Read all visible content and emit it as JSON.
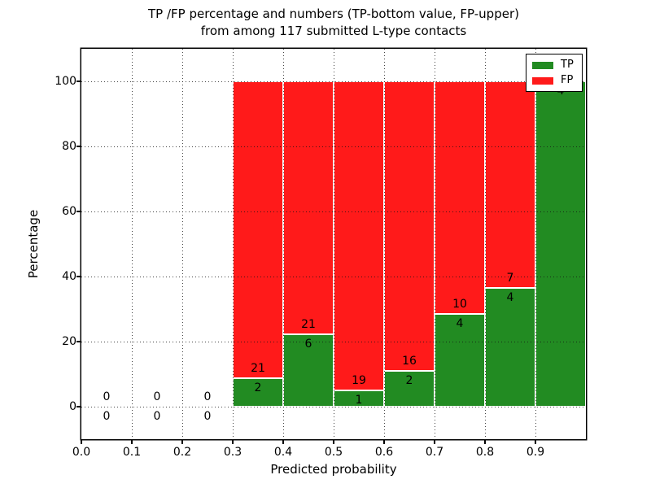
{
  "chart_data": {
    "type": "bar",
    "stacked": true,
    "normalized": "each bin scaled to 100%",
    "title_line1": "TP /FP percentage and numbers (TP-bottom value, FP-upper)",
    "title_line2": "from among 117 submitted L-type contacts",
    "xlabel": "Predicted probability",
    "ylabel": "Percentage",
    "xlim": [
      0.0,
      1.0
    ],
    "ylim": [
      -10,
      110
    ],
    "x_ticks": [
      "0.0",
      "0.1",
      "0.2",
      "0.3",
      "0.4",
      "0.5",
      "0.6",
      "0.7",
      "0.8",
      "0.9"
    ],
    "y_ticks": [
      "0",
      "20",
      "40",
      "60",
      "80",
      "100"
    ],
    "grid": "dotted both axes",
    "total_contacts": 117,
    "legend": {
      "position": "upper right",
      "entries": [
        {
          "label": "TP",
          "color": "#228b22"
        },
        {
          "label": "FP",
          "color": "#ff1a1a"
        }
      ]
    },
    "bins": [
      {
        "x_start": 0.0,
        "x_end": 0.1,
        "tp": 0,
        "fp": 0,
        "tp_pct": 0
      },
      {
        "x_start": 0.1,
        "x_end": 0.2,
        "tp": 0,
        "fp": 0,
        "tp_pct": 0
      },
      {
        "x_start": 0.2,
        "x_end": 0.3,
        "tp": 0,
        "fp": 0,
        "tp_pct": 0
      },
      {
        "x_start": 0.3,
        "x_end": 0.4,
        "tp": 2,
        "fp": 21,
        "tp_pct": 8.7
      },
      {
        "x_start": 0.4,
        "x_end": 0.5,
        "tp": 6,
        "fp": 21,
        "tp_pct": 22.2
      },
      {
        "x_start": 0.5,
        "x_end": 0.6,
        "tp": 1,
        "fp": 19,
        "tp_pct": 5.0
      },
      {
        "x_start": 0.6,
        "x_end": 0.7,
        "tp": 2,
        "fp": 16,
        "tp_pct": 11.1
      },
      {
        "x_start": 0.7,
        "x_end": 0.8,
        "tp": 4,
        "fp": 10,
        "tp_pct": 28.6
      },
      {
        "x_start": 0.8,
        "x_end": 0.9,
        "tp": 4,
        "fp": 7,
        "tp_pct": 36.4
      },
      {
        "x_start": 0.9,
        "x_end": 1.0,
        "tp": 4,
        "fp": 0,
        "tp_pct": 100.0,
        "fp_label_hidden_behind_legend": true
      }
    ]
  }
}
